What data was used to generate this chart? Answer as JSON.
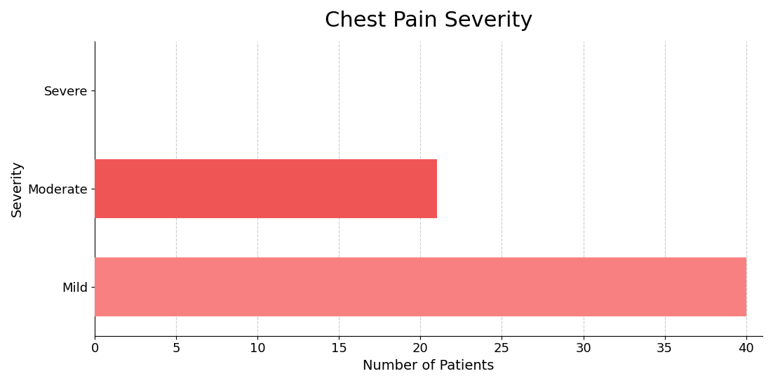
{
  "title": "Chest Pain Severity",
  "categories": [
    "Mild",
    "Moderate",
    "Severe"
  ],
  "values": [
    40,
    21,
    0
  ],
  "bar_colors": [
    "#f88080",
    "#f05555",
    "#f47c7c"
  ],
  "xlabel": "Number of Patients",
  "ylabel": "Severity",
  "xlim": [
    0,
    41
  ],
  "xticks": [
    0,
    5,
    10,
    15,
    20,
    25,
    30,
    35,
    40
  ],
  "title_fontsize": 22,
  "axis_label_fontsize": 14,
  "tick_fontsize": 13,
  "bar_height": 0.6,
  "background_color": "#ffffff",
  "grid_color": "#cccccc"
}
